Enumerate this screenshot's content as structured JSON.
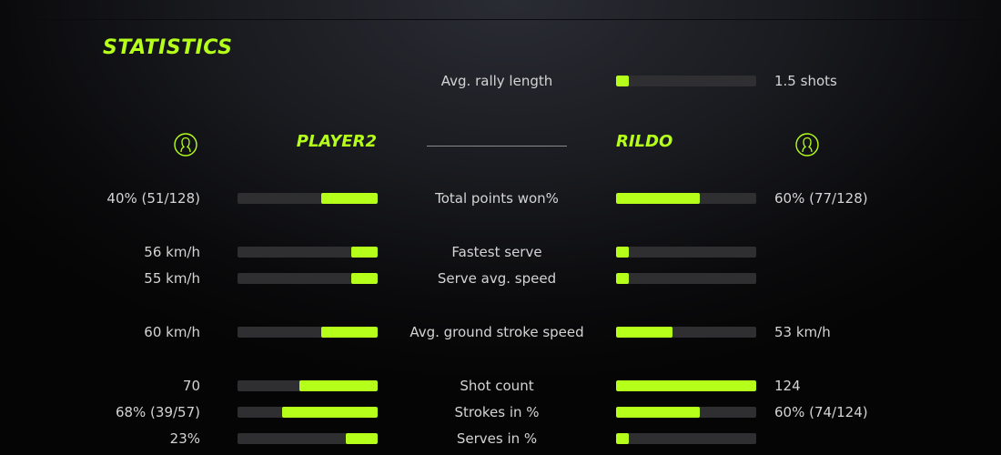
{
  "title": "STATISTICS",
  "accent": "#b5ff1a",
  "players": {
    "left": {
      "name": "PLAYER2",
      "icon": "user-circle-icon"
    },
    "right": {
      "name": "RILDO",
      "icon": "user-circle-icon"
    }
  },
  "rally": {
    "label": "Avg. rally length",
    "value": "1.5 shots",
    "fill": 0.09
  },
  "stats": [
    {
      "label": "Total points won%",
      "left": "40% (51/128)",
      "right": "60% (77/128)",
      "left_fill": 0.4,
      "right_fill": 0.6
    },
    {
      "label": "Fastest serve",
      "left": "56 km/h",
      "right": "",
      "left_fill": 0.19,
      "right_fill": 0.09
    },
    {
      "label": "Serve avg. speed",
      "left": "55 km/h",
      "right": "",
      "left_fill": 0.19,
      "right_fill": 0.09
    },
    {
      "label": "Avg. ground stroke speed",
      "left": "60 km/h",
      "right": "53 km/h",
      "left_fill": 0.4,
      "right_fill": 0.4
    },
    {
      "label": "Shot count",
      "left": "70",
      "right": "124",
      "left_fill": 0.56,
      "right_fill": 1.0
    },
    {
      "label": "Strokes in %",
      "left": "68% (39/57)",
      "right": "60% (74/124)",
      "left_fill": 0.68,
      "right_fill": 0.6
    },
    {
      "label": "Serves in %",
      "left": "23%",
      "right": "",
      "left_fill": 0.23,
      "right_fill": 0.09
    }
  ]
}
